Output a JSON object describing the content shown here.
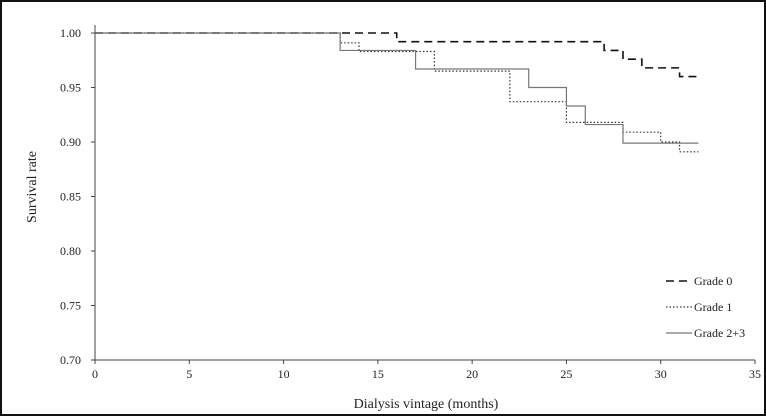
{
  "chart_data": {
    "type": "line",
    "title": "",
    "xlabel": "Dialysis vintage (months)",
    "ylabel": "Survival rate",
    "xlim": [
      0,
      35
    ],
    "ylim": [
      0.7,
      1.0
    ],
    "x_ticks": [
      "0",
      "5",
      "10",
      "15",
      "20",
      "25",
      "30",
      "35"
    ],
    "y_ticks": [
      "0.70",
      "0.75",
      "0.80",
      "0.85",
      "0.90",
      "0.95",
      "1.00"
    ],
    "grid": false,
    "legend_position": "bottom-right",
    "series": [
      {
        "name": "Grade 0",
        "style": "dashed",
        "color": "#111111",
        "x": [
          0,
          13,
          16,
          27,
          28,
          29,
          31,
          32
        ],
        "y": [
          1.0,
          1.0,
          0.992,
          0.984,
          0.976,
          0.968,
          0.96,
          0.96
        ]
      },
      {
        "name": "Grade 1",
        "style": "dotted",
        "color": "#333333",
        "x": [
          0,
          13,
          14,
          18,
          22,
          25,
          26,
          28,
          30,
          31,
          32
        ],
        "y": [
          1.0,
          0.991,
          0.983,
          0.965,
          0.937,
          0.918,
          0.918,
          0.909,
          0.9,
          0.891,
          0.891
        ]
      },
      {
        "name": "Grade 2+3",
        "style": "solid",
        "color": "#777777",
        "x": [
          0,
          13,
          17,
          23,
          25,
          26,
          28,
          32
        ],
        "y": [
          1.0,
          0.984,
          0.967,
          0.95,
          0.933,
          0.916,
          0.899,
          0.899
        ]
      }
    ]
  }
}
